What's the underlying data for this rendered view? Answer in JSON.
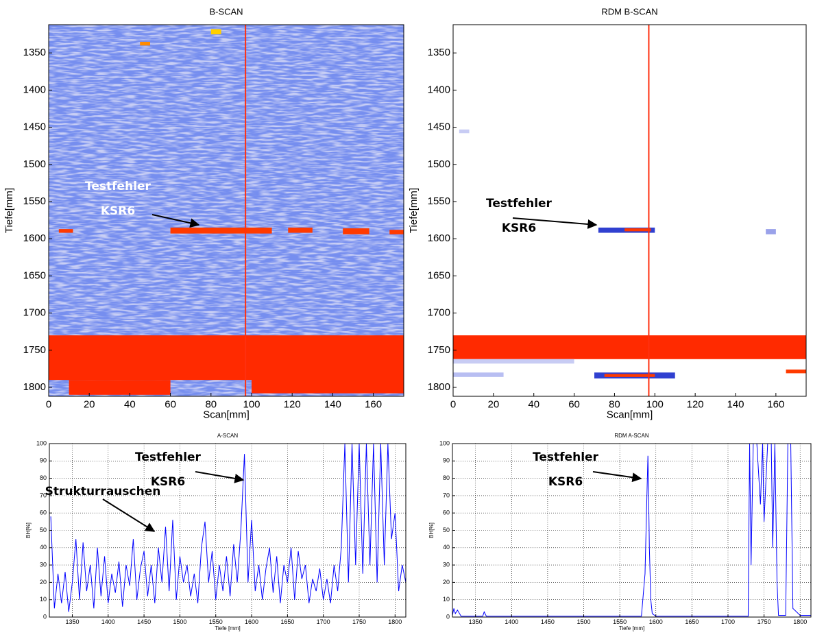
{
  "chart_data": [
    {
      "type": "heatmap",
      "title": "B-SCAN",
      "xlabel": "Scan[mm]",
      "ylabel": "Tiefe[mm]",
      "xlim": [
        0,
        175
      ],
      "xticks": [
        0,
        20,
        40,
        60,
        80,
        100,
        120,
        140,
        160
      ],
      "ylim": [
        1812,
        1312
      ],
      "yticks": [
        1350,
        1400,
        1450,
        1500,
        1550,
        1600,
        1650,
        1700,
        1750,
        1800
      ],
      "texture": true,
      "cursor_x": 97,
      "cursor_color": "#ff3010",
      "regions": [
        {
          "x": [
            0,
            175
          ],
          "y": [
            1730,
            1790
          ],
          "color": "#ff2a00"
        },
        {
          "x": [
            10,
            60
          ],
          "y": [
            1790,
            1810
          ],
          "color": "#ff2a00"
        },
        {
          "x": [
            100,
            175
          ],
          "y": [
            1775,
            1808
          ],
          "color": "#ff2a00"
        },
        {
          "x": [
            60,
            110
          ],
          "y": [
            1585,
            1593
          ],
          "color": "#ff3a00"
        },
        {
          "x": [
            118,
            130
          ],
          "y": [
            1585,
            1592
          ],
          "color": "#ff3a00"
        },
        {
          "x": [
            145,
            158
          ],
          "y": [
            1586,
            1594
          ],
          "color": "#ff3a00"
        },
        {
          "x": [
            168,
            175
          ],
          "y": [
            1588,
            1594
          ],
          "color": "#ff3a00"
        },
        {
          "x": [
            5,
            12
          ],
          "y": [
            1587,
            1592
          ],
          "color": "#ff3a00"
        },
        {
          "x": [
            45,
            50
          ],
          "y": [
            1335,
            1340
          ],
          "color": "#ff8a00"
        },
        {
          "x": [
            80,
            85
          ],
          "y": [
            1318,
            1325
          ],
          "color": "#ffd000"
        }
      ],
      "annotation_color": "#ffffff",
      "annotations": [
        {
          "lines": [
            "Testfehler",
            "KSR6"
          ]
        }
      ]
    },
    {
      "type": "heatmap",
      "title": "RDM B-SCAN",
      "xlabel": "Scan[mm]",
      "ylabel": "Tiefe[mm]",
      "xlim": [
        0,
        175
      ],
      "xticks": [
        0,
        20,
        40,
        60,
        80,
        100,
        120,
        140,
        160
      ],
      "ylim": [
        1812,
        1312
      ],
      "yticks": [
        1350,
        1400,
        1450,
        1500,
        1550,
        1600,
        1650,
        1700,
        1750,
        1800
      ],
      "texture": false,
      "cursor_x": 97,
      "cursor_color": "#ff3010",
      "regions": [
        {
          "x": [
            0,
            175
          ],
          "y": [
            1730,
            1762
          ],
          "color": "#ff2a00"
        },
        {
          "x": [
            0,
            60
          ],
          "y": [
            1762,
            1768
          ],
          "color": "#c8ccf4"
        },
        {
          "x": [
            72,
            100
          ],
          "y": [
            1585,
            1592
          ],
          "color": "#3040d0"
        },
        {
          "x": [
            85,
            98
          ],
          "y": [
            1586,
            1590
          ],
          "color": "#ff3a00"
        },
        {
          "x": [
            155,
            160
          ],
          "y": [
            1587,
            1594
          ],
          "color": "#9aa2ea"
        },
        {
          "x": [
            70,
            110
          ],
          "y": [
            1780,
            1788
          ],
          "color": "#3040d0"
        },
        {
          "x": [
            75,
            100
          ],
          "y": [
            1782,
            1786
          ],
          "color": "#ff3a00"
        },
        {
          "x": [
            0,
            25
          ],
          "y": [
            1780,
            1786
          ],
          "color": "#b8bef2"
        },
        {
          "x": [
            165,
            175
          ],
          "y": [
            1776,
            1781
          ],
          "color": "#ff3a00"
        },
        {
          "x": [
            3,
            8
          ],
          "y": [
            1453,
            1458
          ],
          "color": "#c8ccf4"
        }
      ],
      "annotation_color": "#000000",
      "annotations": [
        {
          "lines": [
            "Testfehler",
            "KSR6"
          ]
        }
      ]
    },
    {
      "type": "line",
      "title": "A-SCAN",
      "xlabel": "Tiefe [mm]",
      "ylabel": "BH[%]",
      "color": "#0000ff",
      "grid": true,
      "xlim": [
        1318,
        1815
      ],
      "xticks": [
        1350,
        1400,
        1450,
        1500,
        1550,
        1600,
        1650,
        1700,
        1750,
        1800
      ],
      "ylim": [
        0,
        100
      ],
      "yticks": [
        0,
        10,
        20,
        30,
        40,
        50,
        60,
        70,
        80,
        90,
        100
      ],
      "x": [
        1320,
        1325,
        1330,
        1335,
        1340,
        1345,
        1350,
        1355,
        1360,
        1365,
        1370,
        1375,
        1380,
        1385,
        1390,
        1395,
        1400,
        1405,
        1410,
        1415,
        1420,
        1425,
        1430,
        1435,
        1440,
        1445,
        1450,
        1455,
        1460,
        1465,
        1470,
        1475,
        1480,
        1485,
        1490,
        1495,
        1500,
        1505,
        1510,
        1515,
        1520,
        1525,
        1530,
        1535,
        1540,
        1545,
        1550,
        1555,
        1560,
        1565,
        1570,
        1575,
        1580,
        1585,
        1590,
        1595,
        1600,
        1605,
        1610,
        1615,
        1620,
        1625,
        1630,
        1635,
        1640,
        1645,
        1650,
        1655,
        1660,
        1665,
        1670,
        1675,
        1680,
        1685,
        1690,
        1695,
        1700,
        1705,
        1710,
        1715,
        1720,
        1725,
        1730,
        1735,
        1740,
        1745,
        1750,
        1755,
        1760,
        1765,
        1770,
        1775,
        1780,
        1785,
        1790,
        1795,
        1800,
        1805,
        1810,
        1815
      ],
      "values": [
        58,
        5,
        25,
        8,
        26,
        3,
        20,
        45,
        10,
        43,
        15,
        30,
        5,
        40,
        12,
        35,
        8,
        25,
        14,
        32,
        6,
        30,
        18,
        45,
        10,
        28,
        38,
        12,
        30,
        8,
        40,
        20,
        52,
        15,
        56,
        10,
        35,
        20,
        30,
        12,
        25,
        8,
        40,
        55,
        20,
        38,
        10,
        30,
        15,
        35,
        12,
        42,
        20,
        50,
        94,
        20,
        56,
        15,
        30,
        10,
        28,
        40,
        14,
        35,
        8,
        30,
        20,
        40,
        10,
        38,
        22,
        30,
        8,
        22,
        15,
        28,
        10,
        22,
        8,
        30,
        15,
        40,
        100,
        20,
        100,
        30,
        100,
        25,
        100,
        30,
        100,
        20,
        100,
        30,
        100,
        45,
        60,
        15,
        30,
        20
      ],
      "annotation_color": "#000000",
      "annotations": [
        {
          "lines": [
            "Testfehler",
            "KSR6"
          ]
        },
        {
          "lines": [
            "Strukturrauschen"
          ]
        }
      ]
    },
    {
      "type": "line",
      "title": "RDM A-SCAN",
      "xlabel": "Tiefe [mm]",
      "ylabel": "BH[%]",
      "color": "#0000ff",
      "grid": true,
      "xlim": [
        1318,
        1815
      ],
      "xticks": [
        1350,
        1400,
        1450,
        1500,
        1550,
        1600,
        1650,
        1700,
        1750,
        1800
      ],
      "ylim": [
        0,
        100
      ],
      "yticks": [
        0,
        10,
        20,
        30,
        40,
        50,
        60,
        70,
        80,
        90,
        100
      ],
      "x": [
        1318,
        1320,
        1322,
        1325,
        1330,
        1360,
        1362,
        1365,
        1400,
        1500,
        1580,
        1585,
        1587,
        1589,
        1590,
        1591,
        1593,
        1595,
        1600,
        1700,
        1728,
        1730,
        1732,
        1735,
        1740,
        1745,
        1748,
        1750,
        1755,
        1760,
        1762,
        1765,
        1768,
        1770,
        1780,
        1783,
        1785,
        1787,
        1790,
        1800,
        1815
      ],
      "values": [
        1,
        5,
        2,
        4,
        0.5,
        0.5,
        3,
        0.5,
        0.5,
        0.5,
        0.5,
        25,
        60,
        93,
        70,
        40,
        10,
        2,
        0.5,
        0.5,
        0.5,
        100,
        30,
        100,
        100,
        65,
        100,
        55,
        100,
        100,
        40,
        100,
        20,
        1,
        1,
        100,
        100,
        100,
        5,
        1,
        1
      ],
      "annotation_color": "#000000",
      "annotations": [
        {
          "lines": [
            "Testfehler",
            "KSR6"
          ]
        }
      ]
    }
  ]
}
